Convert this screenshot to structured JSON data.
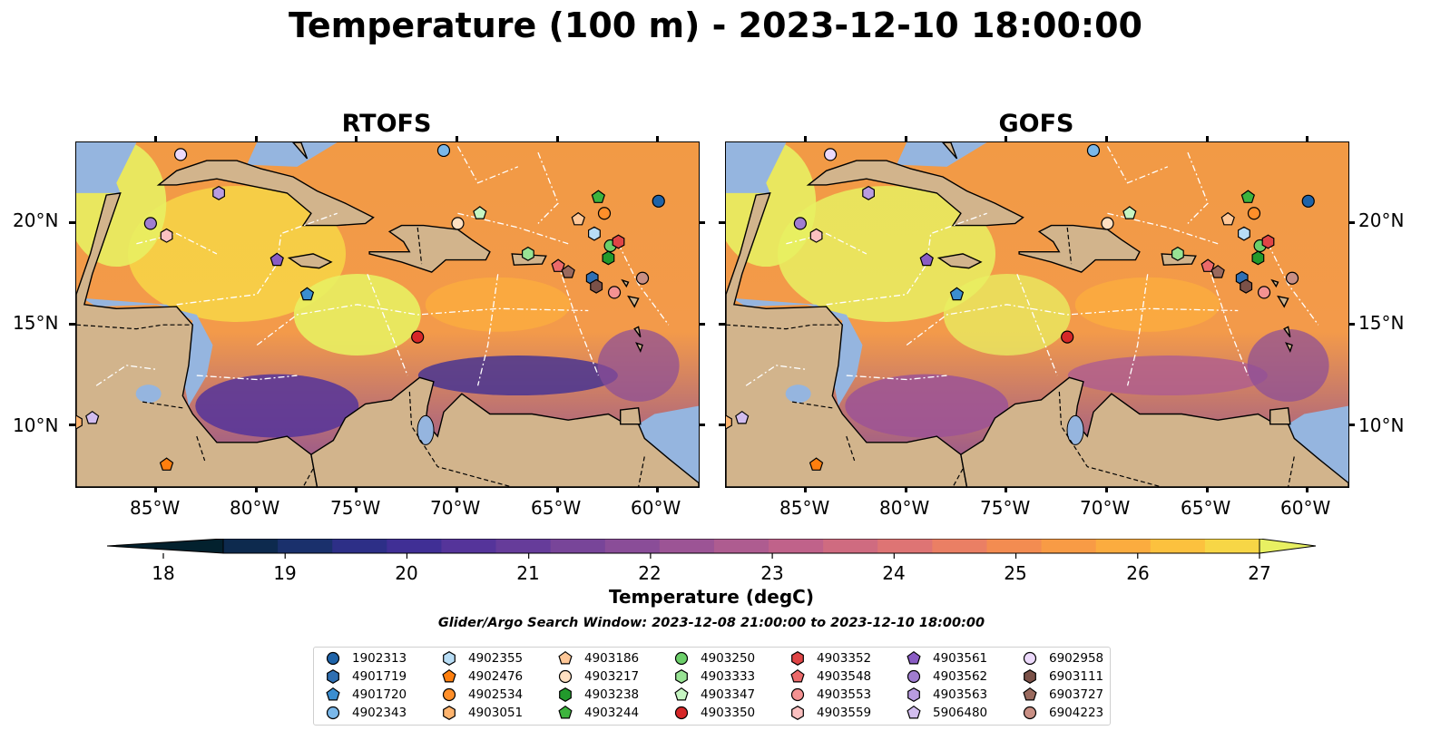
{
  "title": "Temperature (100 m) - 2023-12-10 18:00:00",
  "panels": [
    {
      "title": "RTOFS",
      "model": "rtofs"
    },
    {
      "title": "GOFS",
      "model": "gofs"
    }
  ],
  "axes": {
    "lon_ticks": [
      "85°W",
      "80°W",
      "75°W",
      "70°W",
      "65°W",
      "60°W"
    ],
    "lat_ticks": [
      "20°N",
      "15°N",
      "10°N"
    ],
    "lon_range": [
      -89,
      -58
    ],
    "lat_range": [
      7,
      24
    ]
  },
  "colorbar": {
    "label": "Temperature (degC)",
    "ticks": [
      "18",
      "19",
      "20",
      "21",
      "22",
      "23",
      "24",
      "25",
      "26",
      "27"
    ],
    "range": [
      18,
      27
    ],
    "extend": "both",
    "colors": [
      "#03212e",
      "#0d2a4e",
      "#1a306c",
      "#2d2f87",
      "#402f95",
      "#55349a",
      "#663c9a",
      "#784599",
      "#8a4d98",
      "#9c5495",
      "#ae5c90",
      "#c0628a",
      "#cf6b80",
      "#de7474",
      "#ea7f64",
      "#f38c51",
      "#f89b45",
      "#fbac3f",
      "#fcc13e",
      "#f7d646",
      "#e8f062"
    ]
  },
  "search_window": "Glider/Argo Search Window: 2023-12-08 21:00:00 to 2023-12-10 18:00:00",
  "legend": [
    {
      "id": "1902313",
      "marker": "circle",
      "color": "#1f63a8"
    },
    {
      "id": "4901719",
      "marker": "hexagon",
      "color": "#2f6fb2"
    },
    {
      "id": "4901720",
      "marker": "pentagon",
      "color": "#3b8ed0"
    },
    {
      "id": "4902343",
      "marker": "circle",
      "color": "#7ab8ea"
    },
    {
      "id": "4902355",
      "marker": "hexagon",
      "color": "#b8ddf5"
    },
    {
      "id": "4902476",
      "marker": "pentagon",
      "color": "#ff7f0e"
    },
    {
      "id": "4902534",
      "marker": "circle",
      "color": "#ff8f2a"
    },
    {
      "id": "4903051",
      "marker": "hexagon",
      "color": "#ffb46e"
    },
    {
      "id": "4903186",
      "marker": "pentagon",
      "color": "#ffc797"
    },
    {
      "id": "4903217",
      "marker": "circle",
      "color": "#ffe0c2"
    },
    {
      "id": "4903238",
      "marker": "hexagon",
      "color": "#229a2c"
    },
    {
      "id": "4903244",
      "marker": "pentagon",
      "color": "#3db43e"
    },
    {
      "id": "4903250",
      "marker": "circle",
      "color": "#6ccf6a"
    },
    {
      "id": "4903333",
      "marker": "hexagon",
      "color": "#98e394"
    },
    {
      "id": "4903347",
      "marker": "pentagon",
      "color": "#c6f5c2"
    },
    {
      "id": "4903350",
      "marker": "circle",
      "color": "#d62728"
    },
    {
      "id": "4903352",
      "marker": "hexagon",
      "color": "#e04546"
    },
    {
      "id": "4903548",
      "marker": "pentagon",
      "color": "#ec6a6a"
    },
    {
      "id": "4903553",
      "marker": "circle",
      "color": "#f49292"
    },
    {
      "id": "4903559",
      "marker": "hexagon",
      "color": "#fbc0c0"
    },
    {
      "id": "4903561",
      "marker": "pentagon",
      "color": "#8a5cc4"
    },
    {
      "id": "4903562",
      "marker": "circle",
      "color": "#a07dd0"
    },
    {
      "id": "4903563",
      "marker": "hexagon",
      "color": "#b99ce0"
    },
    {
      "id": "5906480",
      "marker": "pentagon",
      "color": "#d2bdef"
    },
    {
      "id": "6902958",
      "marker": "circle",
      "color": "#ecd9fb"
    },
    {
      "id": "6903111",
      "marker": "hexagon",
      "color": "#7b5148"
    },
    {
      "id": "6903727",
      "marker": "pentagon",
      "color": "#9a6a5e"
    },
    {
      "id": "6904223",
      "marker": "circle",
      "color": "#c98f84"
    }
  ],
  "floats": [
    {
      "id": "1902313",
      "lon": -60.0,
      "lat": 21.1
    },
    {
      "id": "4901719",
      "lon": -63.3,
      "lat": 17.3
    },
    {
      "id": "4901720",
      "lon": -77.5,
      "lat": 16.5
    },
    {
      "id": "4902343",
      "lon": -70.7,
      "lat": 23.6
    },
    {
      "id": "4902355",
      "lon": -63.2,
      "lat": 19.5
    },
    {
      "id": "4902476",
      "lon": -84.5,
      "lat": 8.1
    },
    {
      "id": "4902534",
      "lon": -62.7,
      "lat": 20.5
    },
    {
      "id": "4903051",
      "lon": -89.0,
      "lat": 10.2
    },
    {
      "id": "4903186",
      "lon": -64.0,
      "lat": 20.2
    },
    {
      "id": "4903217",
      "lon": -70.0,
      "lat": 20.0
    },
    {
      "id": "4903238",
      "lon": -62.5,
      "lat": 18.3
    },
    {
      "id": "4903244",
      "lon": -63.0,
      "lat": 21.3
    },
    {
      "id": "4903250",
      "lon": -62.4,
      "lat": 18.9
    },
    {
      "id": "4903333",
      "lon": -66.5,
      "lat": 18.5
    },
    {
      "id": "4903347",
      "lon": -68.9,
      "lat": 20.5
    },
    {
      "id": "4903350",
      "lon": -72.0,
      "lat": 14.4
    },
    {
      "id": "4903352",
      "lon": -62.0,
      "lat": 19.1
    },
    {
      "id": "4903548",
      "lon": -65.0,
      "lat": 17.9
    },
    {
      "id": "4903553",
      "lon": -62.2,
      "lat": 16.6
    },
    {
      "id": "4903559",
      "lon": -84.5,
      "lat": 19.4
    },
    {
      "id": "4903561",
      "lon": -79.0,
      "lat": 18.2
    },
    {
      "id": "4903562",
      "lon": -85.3,
      "lat": 20.0
    },
    {
      "id": "4903563",
      "lon": -81.9,
      "lat": 21.5
    },
    {
      "id": "5906480",
      "lon": -88.2,
      "lat": 10.4
    },
    {
      "id": "6902958",
      "lon": -83.8,
      "lat": 23.4
    },
    {
      "id": "6903111",
      "lon": -63.1,
      "lat": 16.9
    },
    {
      "id": "6903727",
      "lon": -64.5,
      "lat": 17.6
    },
    {
      "id": "6904223",
      "lon": -60.8,
      "lat": 17.3
    }
  ]
}
